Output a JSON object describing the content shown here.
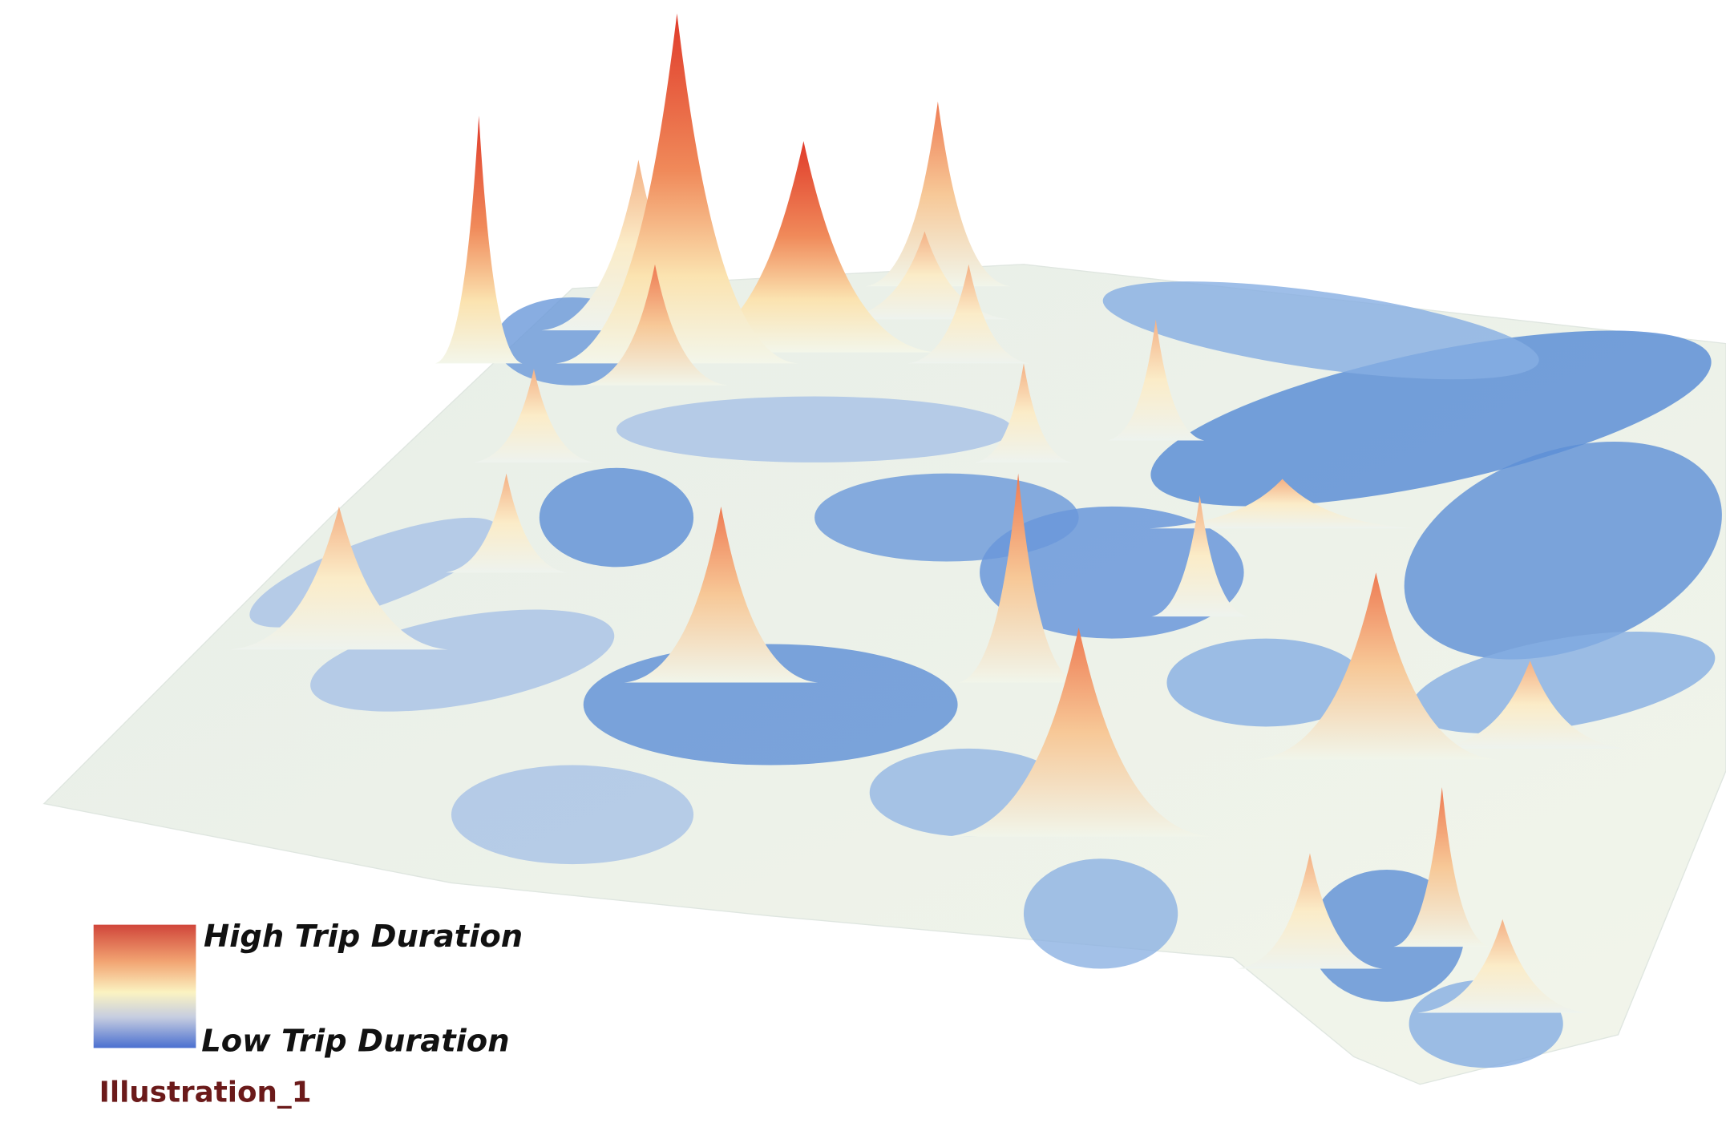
{
  "legend": {
    "high_label": "High Trip Duration",
    "low_label": "Low Trip Duration"
  },
  "caption": "Illustration_1"
}
